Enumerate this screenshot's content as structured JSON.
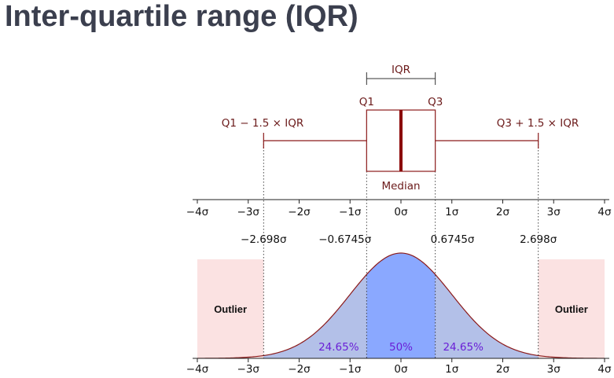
{
  "title": "Inter-quartile range (IQR)",
  "colors": {
    "box_stroke": "#8b1a1a",
    "median_line": "#8b0000",
    "label_text": "#6b1a1a",
    "percent_text": "#6a1fd6",
    "outlier_fill": "#fbe2e2",
    "tail_fill": "#b3c0e8",
    "center_fill": "#8aa8ff",
    "curve_stroke": "#8b1a1a"
  },
  "boxplot": {
    "iqr_label": "IQR",
    "q1_label": "Q1",
    "q3_label": "Q3",
    "median_label": "Median",
    "lower_whisker_label": "Q1 − 1.5 × IQR",
    "upper_whisker_label": "Q3 + 1.5 × IQR",
    "q1": -0.6745,
    "median": 0,
    "q3": 0.6745,
    "lower_whisker": -2.698,
    "upper_whisker": 2.698
  },
  "axis": {
    "range": [
      -4,
      4
    ],
    "ticks": [
      {
        "value": -4,
        "label": "−4σ"
      },
      {
        "value": -3,
        "label": "−3σ"
      },
      {
        "value": -2,
        "label": "−2σ"
      },
      {
        "value": -1,
        "label": "−1σ"
      },
      {
        "value": 0,
        "label": "0σ"
      },
      {
        "value": 1,
        "label": "1σ"
      },
      {
        "value": 2,
        "label": "2σ"
      },
      {
        "value": 3,
        "label": "3σ"
      },
      {
        "value": 4,
        "label": "4σ"
      }
    ]
  },
  "markers": [
    {
      "value": -2.698,
      "label": "−2.698σ"
    },
    {
      "value": -0.6745,
      "label": "−0.6745σ"
    },
    {
      "value": 0.6745,
      "label": "0.6745σ"
    },
    {
      "value": 2.698,
      "label": "2.698σ"
    }
  ],
  "distribution": {
    "left_outlier_label": "Outlier",
    "right_outlier_label": "Outlier",
    "left_pct": "24.65%",
    "center_pct": "50%",
    "right_pct": "24.65%"
  }
}
